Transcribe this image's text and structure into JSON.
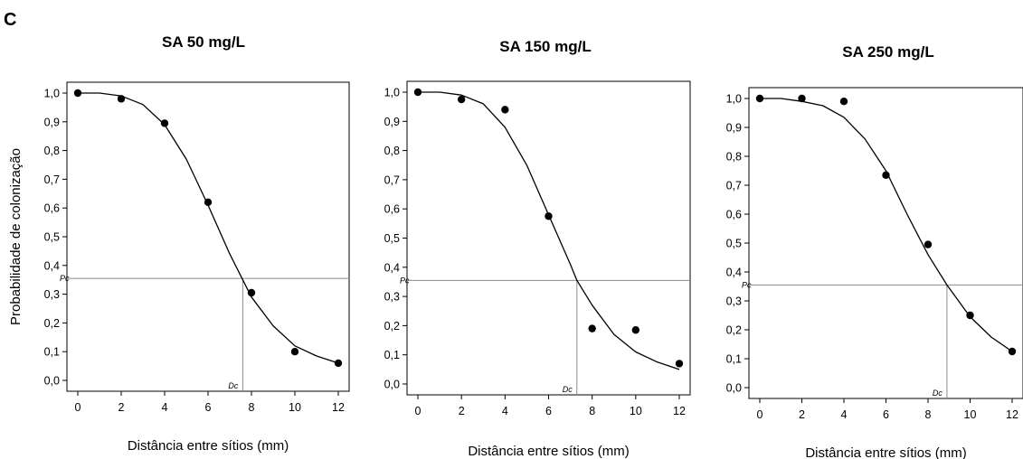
{
  "figure": {
    "panel_letter": "C"
  },
  "chart_data": [
    {
      "type": "scatter",
      "title": "SA 50 mg/L",
      "xlabel": "Distância entre sítios (mm)",
      "ylabel": "Probabilidade de colonização",
      "xlim": [
        0,
        12
      ],
      "ylim": [
        0,
        1
      ],
      "xticks": [
        "0",
        "2",
        "4",
        "6",
        "8",
        "10",
        "12"
      ],
      "yticks": [
        "0,0",
        "0,1",
        "0,2",
        "0,3",
        "0,4",
        "0,5",
        "0,6",
        "0,7",
        "0,8",
        "0,9",
        "1,0"
      ],
      "points": {
        "x": [
          0,
          2,
          4,
          6,
          8,
          10,
          12
        ],
        "y": [
          1.0,
          0.98,
          0.895,
          0.62,
          0.305,
          0.1,
          0.06
        ]
      },
      "fit": {
        "x": [
          0,
          1,
          2,
          3,
          4,
          5,
          6,
          7,
          7.6,
          8,
          9,
          10,
          11,
          12
        ],
        "y": [
          1.0,
          1.0,
          0.99,
          0.96,
          0.89,
          0.77,
          0.61,
          0.44,
          0.35,
          0.29,
          0.19,
          0.12,
          0.085,
          0.06
        ]
      },
      "pc_label": "Pc",
      "pc_value": 0.355,
      "dc_label": "Dc",
      "dc_value": 7.6
    },
    {
      "type": "scatter",
      "title": "SA 150 mg/L",
      "xlabel": "Distância entre sítios (mm)",
      "ylabel": "",
      "xlim": [
        0,
        12
      ],
      "ylim": [
        0,
        1
      ],
      "xticks": [
        "0",
        "2",
        "4",
        "6",
        "8",
        "10",
        "12"
      ],
      "yticks": [
        "0,0",
        "0,1",
        "0,2",
        "0,3",
        "0,4",
        "0,5",
        "0,6",
        "0,7",
        "0,8",
        "0,9",
        "1,0"
      ],
      "points": {
        "x": [
          0,
          2,
          4,
          6,
          8,
          10,
          12
        ],
        "y": [
          1.0,
          0.975,
          0.94,
          0.575,
          0.19,
          0.185,
          0.07
        ]
      },
      "fit": {
        "x": [
          0,
          1,
          2,
          3,
          4,
          5,
          6,
          7,
          7.3,
          8,
          9,
          10,
          11,
          12
        ],
        "y": [
          1.0,
          1.0,
          0.99,
          0.96,
          0.88,
          0.75,
          0.58,
          0.41,
          0.355,
          0.27,
          0.17,
          0.11,
          0.075,
          0.05
        ]
      },
      "pc_label": "Pc",
      "pc_value": 0.355,
      "dc_label": "Dc",
      "dc_value": 7.3
    },
    {
      "type": "scatter",
      "title": "SA 250 mg/L",
      "xlabel": "Distância entre sítios (mm)",
      "ylabel": "",
      "xlim": [
        0,
        12
      ],
      "ylim": [
        0,
        1
      ],
      "xticks": [
        "0",
        "2",
        "4",
        "6",
        "8",
        "10",
        "12"
      ],
      "yticks": [
        "0,0",
        "0,1",
        "0,2",
        "0,3",
        "0,4",
        "0,5",
        "0,6",
        "0,7",
        "0,8",
        "0,9",
        "1,0"
      ],
      "points": {
        "x": [
          0,
          2,
          4,
          6,
          8,
          10,
          12
        ],
        "y": [
          1.0,
          1.0,
          0.99,
          0.735,
          0.495,
          0.25,
          0.125
        ]
      },
      "fit": {
        "x": [
          0,
          1,
          2,
          3,
          4,
          5,
          6,
          7,
          8,
          8.9,
          10,
          11,
          12
        ],
        "y": [
          1.0,
          1.0,
          0.99,
          0.975,
          0.935,
          0.86,
          0.75,
          0.6,
          0.46,
          0.355,
          0.245,
          0.175,
          0.125
        ]
      },
      "pc_label": "Pc",
      "pc_value": 0.355,
      "dc_label": "Dc",
      "dc_value": 8.9
    }
  ]
}
